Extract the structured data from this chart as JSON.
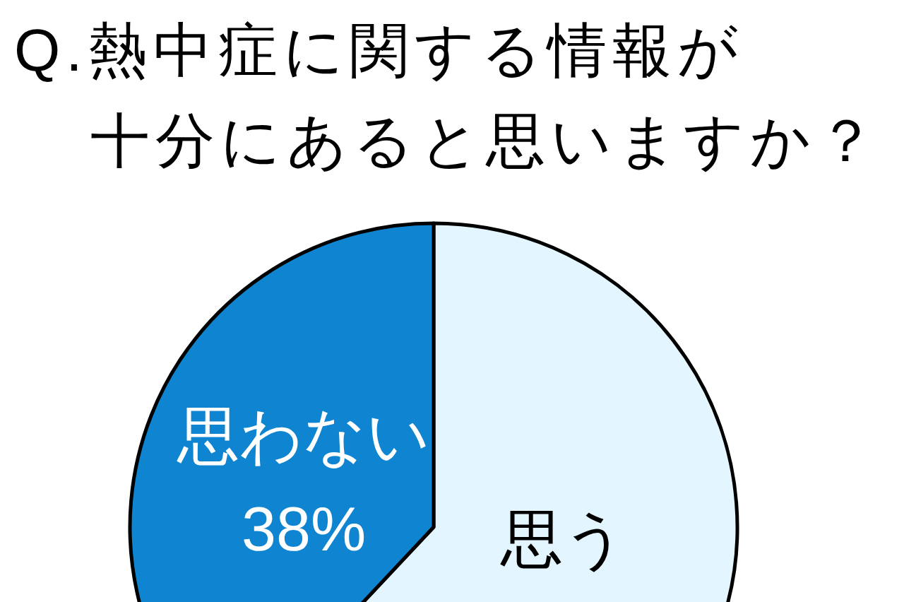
{
  "chart_data": {
    "type": "pie",
    "title": "Q.熱中症に関する情報が十分にあると思いますか？",
    "categories": [
      "思う",
      "思わない"
    ],
    "values": [
      62,
      38
    ],
    "colors": [
      "#e3f5fe",
      "#0f84d1"
    ],
    "value_labels": [
      null,
      "38%"
    ]
  }
}
